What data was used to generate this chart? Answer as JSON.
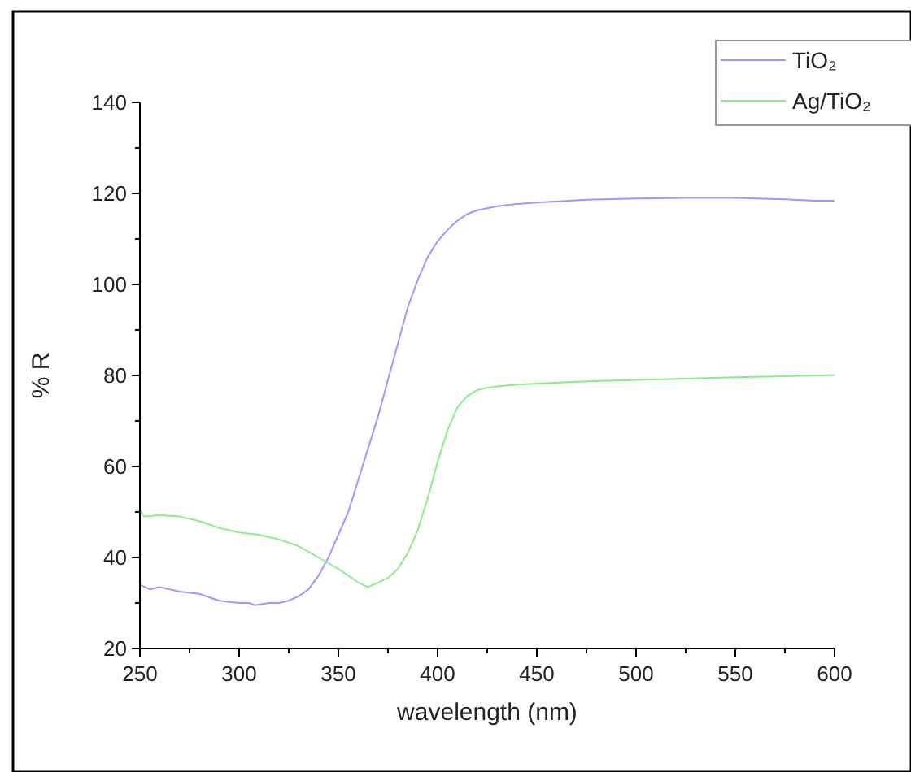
{
  "chart_data": {
    "type": "line",
    "xlabel": "wavelength (nm)",
    "ylabel": "% R",
    "xlim": [
      250,
      600
    ],
    "ylim": [
      20,
      140
    ],
    "xticks": [
      250,
      {
        "value": 275,
        "label": null
      },
      300,
      {
        "value": 325,
        "label": null
      },
      350,
      {
        "value": 375,
        "label": null
      },
      400,
      {
        "value": 425,
        "label": null
      },
      450,
      {
        "value": 475,
        "label": null
      },
      500,
      {
        "value": 525,
        "label": null
      },
      550,
      {
        "value": 575,
        "label": null
      },
      600
    ],
    "yticks": [
      20,
      {
        "value": 30,
        "label": null
      },
      40,
      {
        "value": 50,
        "label": null
      },
      60,
      {
        "value": 70,
        "label": null
      },
      80,
      {
        "value": 90,
        "label": null
      },
      100,
      {
        "value": 110,
        "label": null
      },
      120,
      {
        "value": 130,
        "label": null
      },
      140
    ],
    "legend": "top right",
    "grid": false,
    "line_style": "solid",
    "marker": "none",
    "series": [
      {
        "name": "TiO₂",
        "color": "#9999ff",
        "x": [
          250,
          255,
          260,
          270,
          280,
          290,
          300,
          305,
          308,
          315,
          320,
          325,
          330,
          335,
          340,
          345,
          350,
          355,
          360,
          365,
          370,
          375,
          380,
          385,
          390,
          395,
          400,
          405,
          410,
          415,
          420,
          430,
          440,
          450,
          475,
          500,
          525,
          550,
          575,
          590,
          600
        ],
        "values": [
          34,
          33,
          33.5,
          32.5,
          32,
          30.5,
          30,
          30,
          29.5,
          30,
          30,
          30.5,
          31.5,
          33,
          36,
          40,
          45,
          50,
          57,
          64,
          71,
          79,
          87,
          95,
          101,
          106,
          109.5,
          112,
          114,
          115.5,
          116.3,
          117.2,
          117.7,
          118,
          118.6,
          118.9,
          119,
          119,
          118.7,
          118.4,
          118.4
        ]
      },
      {
        "name": "Ag/TiO₂",
        "color": "#88ee88",
        "x": [
          250,
          252,
          260,
          270,
          280,
          290,
          300,
          310,
          320,
          330,
          340,
          350,
          355,
          360,
          365,
          370,
          375,
          380,
          385,
          390,
          395,
          400,
          405,
          410,
          415,
          420,
          425,
          430,
          440,
          450,
          475,
          500,
          525,
          550,
          575,
          600
        ],
        "values": [
          50.5,
          49,
          49.3,
          49,
          48,
          46.5,
          45.5,
          45,
          44,
          42.5,
          40,
          37.5,
          36,
          34.5,
          33.5,
          34.5,
          35.5,
          37.5,
          41,
          46,
          53,
          61,
          68,
          73,
          75.5,
          76.8,
          77.3,
          77.6,
          78,
          78.2,
          78.7,
          79,
          79.3,
          79.6,
          79.8,
          80.1
        ]
      }
    ]
  }
}
